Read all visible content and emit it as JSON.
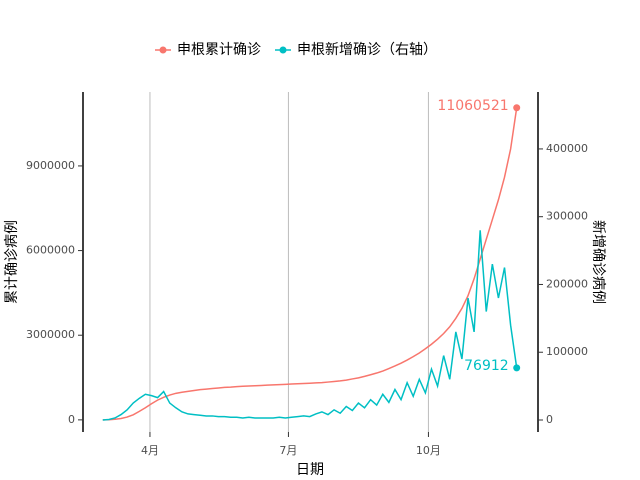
{
  "chart_data": {
    "type": "line",
    "x_label": "日期",
    "y_label": "累计确诊病例",
    "y2_label": "新增确诊病例",
    "x": [
      61,
      65,
      69,
      73,
      77,
      81,
      85,
      89,
      93,
      97,
      101,
      105,
      109,
      113,
      117,
      121,
      125,
      129,
      133,
      137,
      141,
      145,
      149,
      153,
      157,
      161,
      165,
      169,
      173,
      177,
      181,
      185,
      189,
      193,
      197,
      201,
      205,
      209,
      213,
      217,
      221,
      225,
      229,
      233,
      237,
      241,
      245,
      249,
      253,
      257,
      261,
      265,
      269,
      273,
      277,
      281,
      285,
      289,
      293,
      297,
      301,
      305,
      309,
      313,
      317,
      321,
      325,
      329,
      333
    ],
    "xlim": [
      48,
      347
    ],
    "xticks": [
      {
        "value": 92,
        "label": "4月"
      },
      {
        "value": 183,
        "label": "7月"
      },
      {
        "value": 275,
        "label": "10月"
      }
    ],
    "ylim": [
      -430000,
      11620000
    ],
    "yticks": [
      0,
      3000000,
      6000000,
      9000000
    ],
    "y2lim": [
      -17700,
      484000
    ],
    "y2ticks": [
      0,
      100000,
      200000,
      300000,
      400000
    ],
    "grid": "x",
    "legend": "top",
    "series": [
      {
        "name": "申根累计确诊",
        "color": "#F8766D",
        "values": [
          1000,
          5000,
          20000,
          50000,
          100000,
          180000,
          300000,
          430000,
          570000,
          700000,
          800000,
          880000,
          940000,
          980000,
          1010000,
          1040000,
          1070000,
          1090000,
          1110000,
          1130000,
          1150000,
          1160000,
          1180000,
          1190000,
          1200000,
          1210000,
          1220000,
          1230000,
          1240000,
          1250000,
          1260000,
          1270000,
          1280000,
          1290000,
          1300000,
          1310000,
          1320000,
          1340000,
          1360000,
          1380000,
          1410000,
          1450000,
          1490000,
          1540000,
          1600000,
          1660000,
          1730000,
          1820000,
          1910000,
          2010000,
          2120000,
          2240000,
          2370000,
          2520000,
          2680000,
          2860000,
          3060000,
          3300000,
          3600000,
          3950000,
          4400000,
          5000000,
          5700000,
          6400000,
          7100000,
          7800000,
          8600000,
          9600000,
          11060521
        ]
      },
      {
        "name": "申根新增确诊（右轴）",
        "color": "#00BFC4",
        "axis": "y2",
        "values": [
          100,
          800,
          3000,
          8000,
          15000,
          25000,
          32000,
          38000,
          36000,
          33000,
          42000,
          25000,
          18000,
          12000,
          9000,
          8000,
          7000,
          6000,
          6000,
          5000,
          5000,
          4000,
          4000,
          3000,
          4000,
          3000,
          3000,
          3000,
          3000,
          4000,
          3000,
          4000,
          5000,
          6000,
          5000,
          9000,
          12000,
          8000,
          15000,
          10000,
          20000,
          14000,
          25000,
          18000,
          30000,
          22000,
          38000,
          26000,
          45000,
          30000,
          55000,
          35000,
          60000,
          40000,
          75000,
          50000,
          95000,
          60000,
          130000,
          90000,
          180000,
          130000,
          280000,
          160000,
          230000,
          180000,
          225000,
          140000,
          76912
        ]
      }
    ]
  }
}
